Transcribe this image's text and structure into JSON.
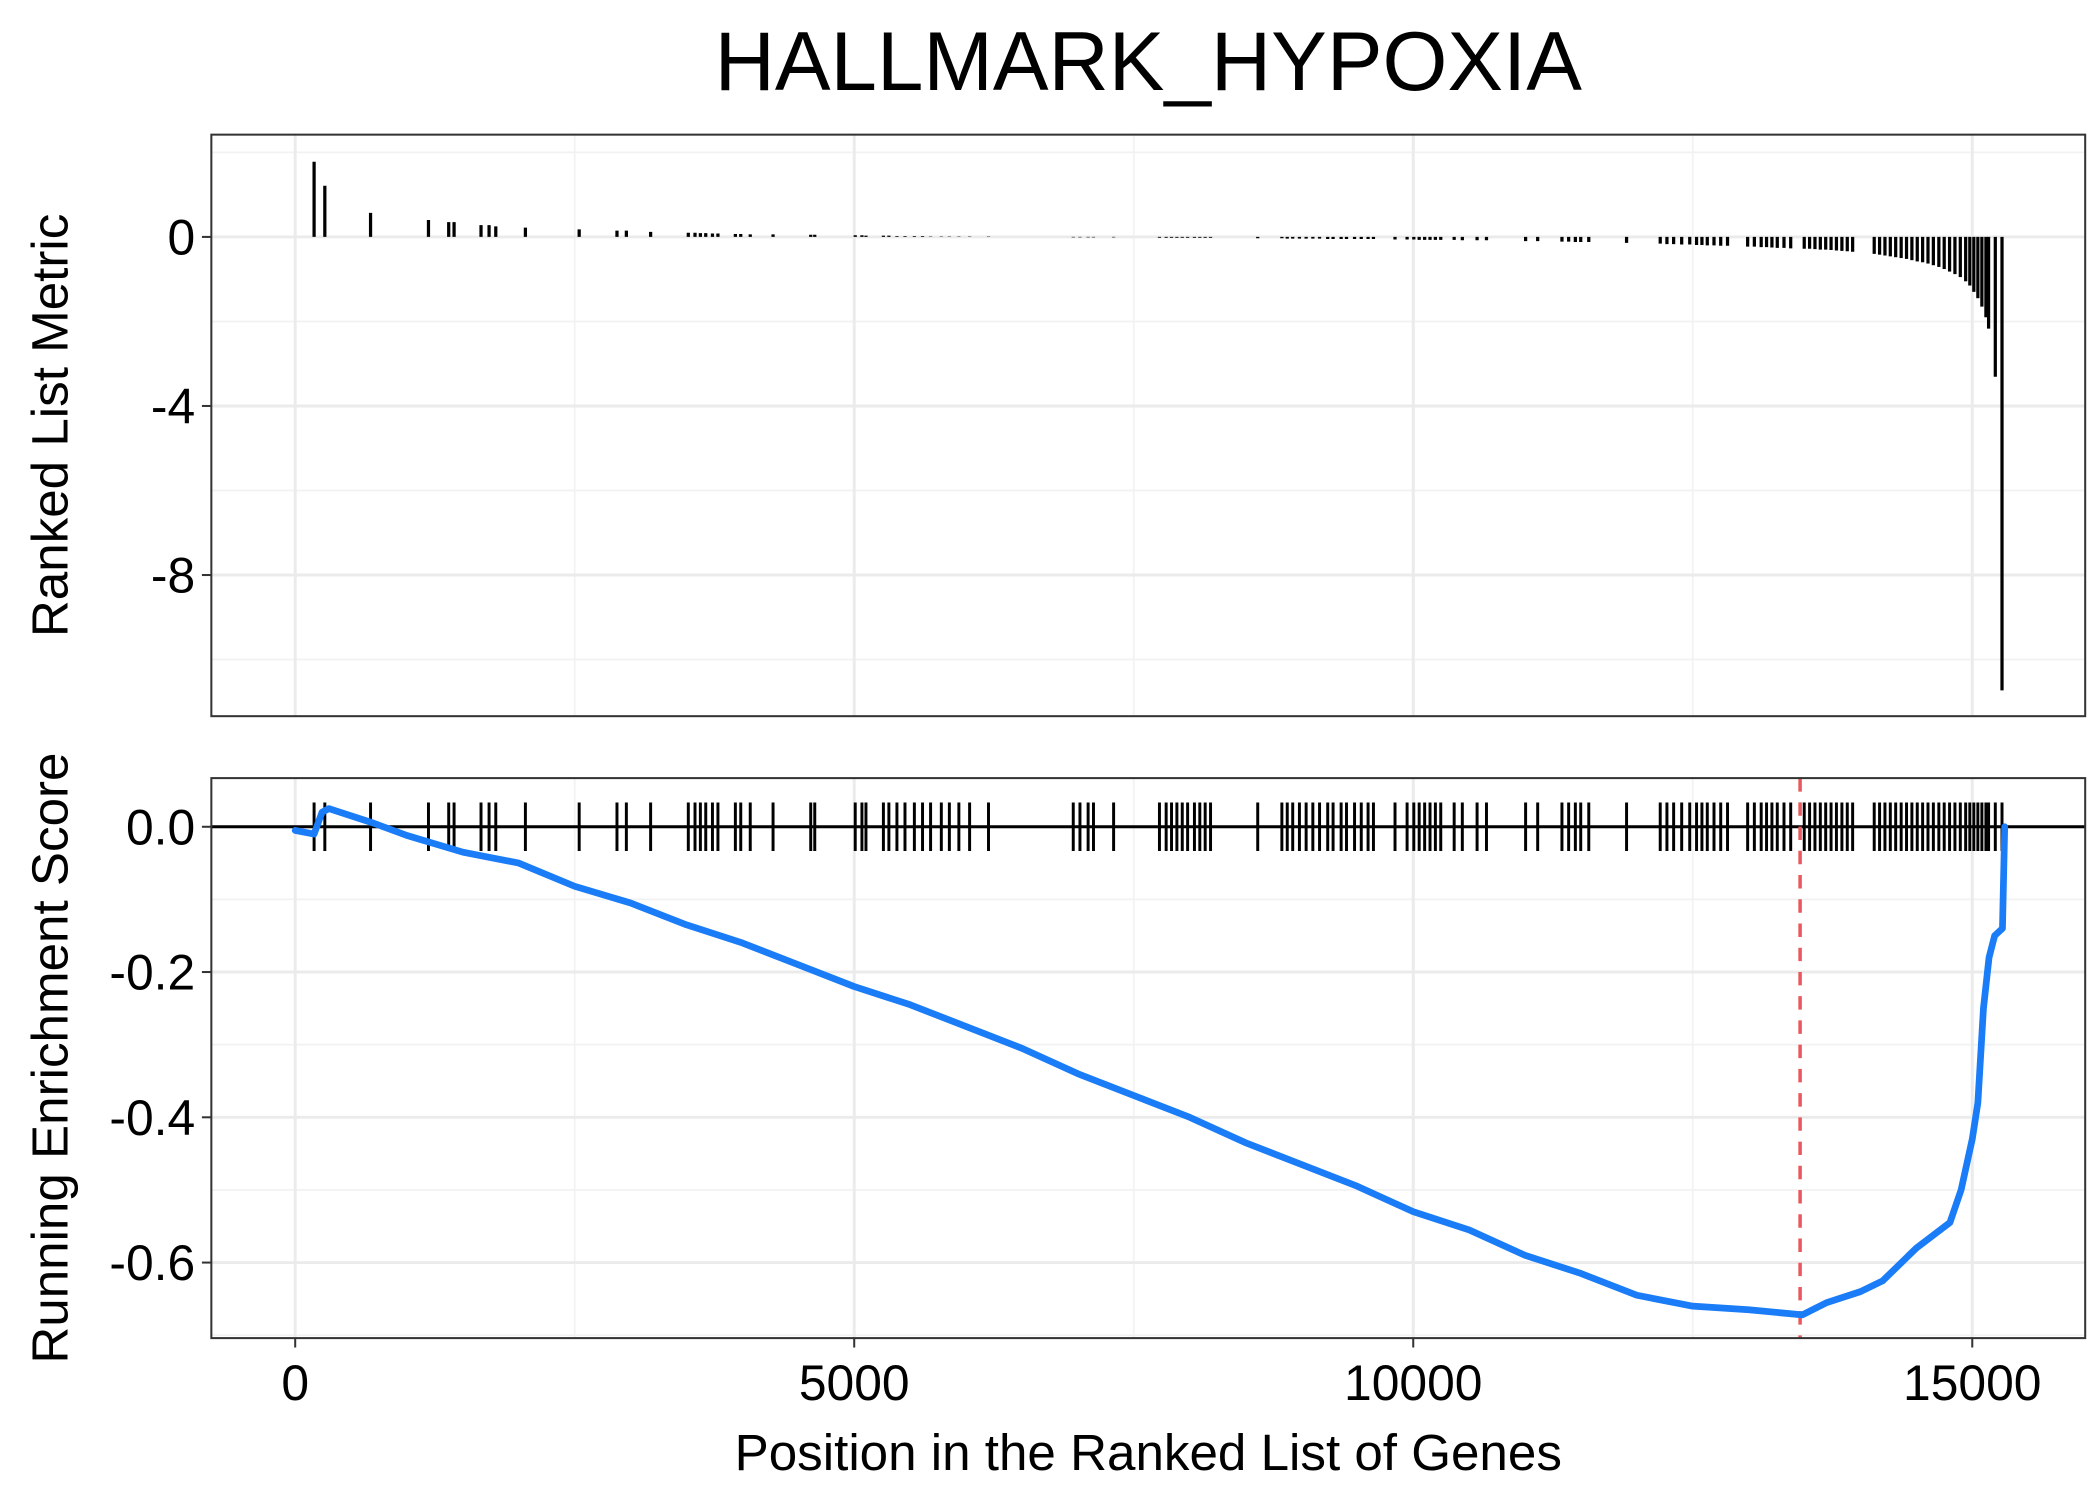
{
  "chart_data": [
    {
      "type": "bar",
      "title": "HALLMARK_HYPOXIA",
      "ylabel": "Ranked List Metric",
      "color": "#000000",
      "grid": true,
      "ylim": [
        -11.34,
        2.42
      ],
      "yticks": [
        -8,
        -4,
        0
      ],
      "x": [
        169,
        265,
        674,
        1192,
        1373,
        1421,
        1662,
        1734,
        1794,
        2059,
        2540,
        2878,
        2962,
        3179,
        3516,
        3576,
        3624,
        3672,
        3732,
        3781,
        3937,
        3985,
        4070,
        4274,
        4611,
        4647,
        5009,
        5069,
        5105,
        5261,
        5310,
        5382,
        5454,
        5538,
        5611,
        5683,
        5779,
        5851,
        5936,
        6032,
        6201,
        6959,
        7019,
        7092,
        7140,
        7320,
        7730,
        7790,
        7838,
        7886,
        7934,
        7982,
        8043,
        8091,
        8139,
        8187,
        8609,
        8825,
        8873,
        8922,
        8982,
        9042,
        9102,
        9162,
        9235,
        9283,
        9355,
        9403,
        9475,
        9535,
        9596,
        9644,
        9837,
        9945,
        10005,
        10053,
        10102,
        10150,
        10198,
        10246,
        10366,
        10439,
        10571,
        10655,
        11005,
        11113,
        11330,
        11390,
        11450,
        11498,
        11570,
        11908,
        12209,
        12269,
        12329,
        12401,
        12473,
        12534,
        12582,
        12630,
        12690,
        12750,
        12811,
        12991,
        13051,
        13112,
        13160,
        13208,
        13256,
        13316,
        13376,
        13497,
        13545,
        13593,
        13641,
        13689,
        13737,
        13785,
        13834,
        13882,
        13930,
        14123,
        14171,
        14219,
        14267,
        14315,
        14364,
        14412,
        14460,
        14508,
        14556,
        14604,
        14652,
        14701,
        14749,
        14797,
        14845,
        14893,
        14941,
        14978,
        15014,
        15050,
        15086,
        15122,
        15146,
        15206,
        15266
      ],
      "values": [
        1.78,
        1.21,
        0.57,
        0.4,
        0.35,
        0.35,
        0.28,
        0.28,
        0.25,
        0.22,
        0.18,
        0.15,
        0.15,
        0.12,
        0.1,
        0.1,
        0.09,
        0.09,
        0.08,
        0.08,
        0.07,
        0.07,
        0.06,
        0.06,
        0.05,
        0.05,
        0.04,
        0.04,
        0.03,
        0.03,
        0.03,
        0.02,
        0.02,
        0.02,
        0.02,
        0.01,
        0.01,
        0.01,
        0.01,
        0.01,
        0.01,
        -0.01,
        -0.01,
        -0.01,
        -0.01,
        -0.01,
        -0.02,
        -0.02,
        -0.02,
        -0.02,
        -0.02,
        -0.02,
        -0.02,
        -0.02,
        -0.02,
        -0.02,
        -0.03,
        -0.03,
        -0.04,
        -0.04,
        -0.04,
        -0.04,
        -0.04,
        -0.04,
        -0.05,
        -0.05,
        -0.05,
        -0.05,
        -0.05,
        -0.05,
        -0.05,
        -0.05,
        -0.06,
        -0.06,
        -0.06,
        -0.07,
        -0.07,
        -0.07,
        -0.07,
        -0.07,
        -0.07,
        -0.08,
        -0.08,
        -0.08,
        -0.1,
        -0.1,
        -0.11,
        -0.11,
        -0.12,
        -0.12,
        -0.12,
        -0.14,
        -0.16,
        -0.17,
        -0.17,
        -0.18,
        -0.18,
        -0.19,
        -0.19,
        -0.2,
        -0.2,
        -0.21,
        -0.21,
        -0.23,
        -0.23,
        -0.24,
        -0.24,
        -0.25,
        -0.26,
        -0.26,
        -0.27,
        -0.28,
        -0.28,
        -0.29,
        -0.3,
        -0.3,
        -0.31,
        -0.32,
        -0.33,
        -0.34,
        -0.35,
        -0.4,
        -0.42,
        -0.44,
        -0.46,
        -0.48,
        -0.5,
        -0.52,
        -0.55,
        -0.58,
        -0.6,
        -0.63,
        -0.67,
        -0.71,
        -0.76,
        -0.82,
        -0.88,
        -0.95,
        -1.05,
        -1.15,
        -1.3,
        -1.45,
        -1.65,
        -1.9,
        -2.17,
        -3.31,
        -10.73
      ]
    },
    {
      "type": "line",
      "ylabel": "Running Enrichment Score",
      "xlabel": "Position in the Ranked List of Genes",
      "color": "#1a7cf6",
      "grid": true,
      "xlim": [
        -750,
        16010
      ],
      "xticks": [
        0,
        5000,
        10000,
        15000
      ],
      "ylim": [
        -0.704,
        0.067
      ],
      "yticks": [
        -0.6,
        -0.4,
        -0.2,
        {
          "value": 0,
          "label": "0.0"
        }
      ],
      "hline": 0,
      "vline": 13460,
      "vline_color": "#e8585c",
      "hit_color": "#000000",
      "x": [
        0,
        169,
        240,
        300,
        700,
        1000,
        1500,
        2000,
        2500,
        3000,
        3500,
        4000,
        4500,
        5000,
        5500,
        6000,
        6500,
        7000,
        7500,
        8000,
        8500,
        9000,
        9500,
        10000,
        10500,
        11000,
        11500,
        12000,
        12500,
        13000,
        13480,
        13700,
        14000,
        14200,
        14500,
        14800,
        14900,
        15000,
        15050,
        15100,
        15150,
        15200,
        15270,
        15290
      ],
      "values": [
        -0.005,
        -0.01,
        0.02,
        0.025,
        0.005,
        -0.012,
        -0.035,
        -0.05,
        -0.082,
        -0.105,
        -0.135,
        -0.16,
        -0.19,
        -0.22,
        -0.245,
        -0.275,
        -0.305,
        -0.34,
        -0.37,
        -0.4,
        -0.435,
        -0.465,
        -0.495,
        -0.53,
        -0.555,
        -0.59,
        -0.615,
        -0.645,
        -0.66,
        -0.665,
        -0.672,
        -0.655,
        -0.64,
        -0.625,
        -0.58,
        -0.545,
        -0.5,
        -0.43,
        -0.38,
        -0.25,
        -0.18,
        -0.15,
        -0.14,
        0.0
      ]
    }
  ]
}
